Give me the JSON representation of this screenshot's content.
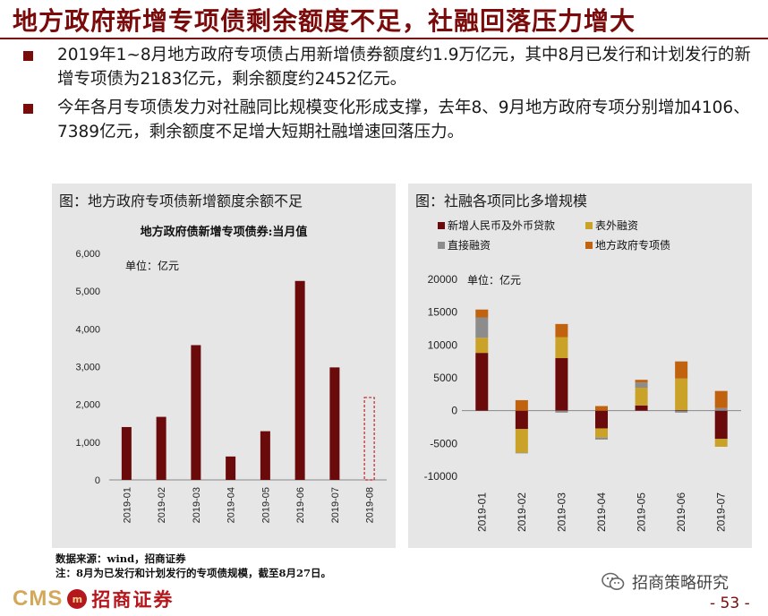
{
  "title": "地方政府新增专项债剩余额度不足，社融回落压力增大",
  "bullets": [
    "2019年1~8月地方政府专项债占用新增债券额度约1.9万亿元，其中8月已发行和计划发行的新增专项债为2183亿元，剩余额度约2452亿元。",
    "今年各月专项债发力对社融同比规模变化形成支撑，去年8、9月地方政府专项分别增加4106、7389亿元，剩余额度不足增大短期社融增速回落压力。"
  ],
  "left_panel": {
    "title": "图：地方政府专项债新增额度余额不足"
  },
  "right_panel": {
    "title": "图：社融各项同比多增规模"
  },
  "notes": {
    "source": "数据来源：wind，招商证券",
    "note": "注：8月为已发行和计划发行的专项债规模，截至8月27日。"
  },
  "footer": {
    "logo_text": "CMS",
    "logo_mark": "m",
    "logo_cn": "招商证券",
    "wechat": "招商策略研究",
    "page": "- 53 -"
  },
  "colors": {
    "brand": "#7b0a0a",
    "bar": "#6b0a0a",
    "table_fin": "#c9a227",
    "direct_fin": "#8c8c8c",
    "local_gov": "#c0620e"
  },
  "chart_data": [
    {
      "type": "bar",
      "title": "地方政府债新增专项债券:当月值",
      "unit": "单位：亿元",
      "categories": [
        "2019-01",
        "2019-02",
        "2019-03",
        "2019-04",
        "2019-05",
        "2019-06",
        "2019-07",
        "2019-08"
      ],
      "values": [
        1400,
        1670,
        3570,
        620,
        1290,
        5270,
        2980,
        2183
      ],
      "dashed_last": true,
      "ylim": [
        0,
        6000
      ],
      "yticks": [
        "0",
        "1,000",
        "2,000",
        "3,000",
        "4,000",
        "5,000",
        "6,000"
      ]
    },
    {
      "type": "bar",
      "stacked": true,
      "unit": "单位：亿元",
      "categories": [
        "2019-01",
        "2019-02",
        "2019-03",
        "2019-04",
        "2019-05",
        "2019-06",
        "2019-07"
      ],
      "ylim": [
        -10000,
        20000
      ],
      "yticks": [
        "-10000",
        "-5000",
        "0",
        "5000",
        "10000",
        "15000",
        "20000"
      ],
      "series": [
        {
          "name": "新增人民币及外币贷款",
          "values": [
            8800,
            -2800,
            8000,
            -2700,
            800,
            100,
            -4300
          ]
        },
        {
          "name": "表外融资",
          "values": [
            2300,
            -3600,
            3200,
            -1400,
            2700,
            4800,
            -1200
          ]
        },
        {
          "name": "直接融资",
          "values": [
            3100,
            -100,
            -300,
            -300,
            800,
            -300,
            400
          ]
        },
        {
          "name": "地方政府专项债",
          "values": [
            1200,
            1600,
            2000,
            700,
            400,
            2600,
            2600
          ]
        }
      ]
    }
  ]
}
